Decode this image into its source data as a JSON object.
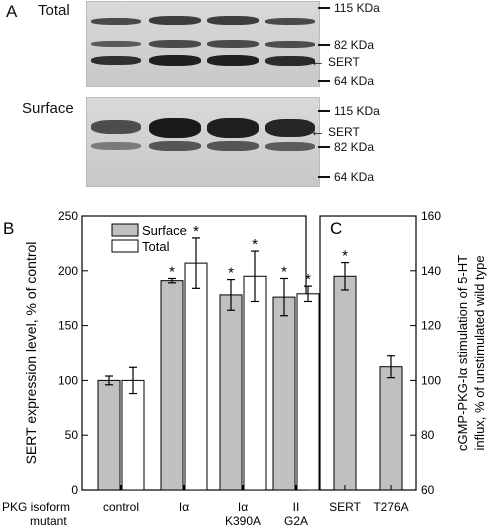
{
  "panels": {
    "a": "A",
    "b": "B",
    "c": "C"
  },
  "blots": {
    "total": {
      "title": "Total",
      "markers": [
        {
          "label": "115 KDa",
          "kind": "dash"
        },
        {
          "label": "82 KDa",
          "kind": "dash"
        },
        {
          "label": "SERT",
          "kind": "arrow"
        },
        {
          "label": "64 KDa",
          "kind": "dash"
        }
      ]
    },
    "surface": {
      "title": "Surface",
      "markers": [
        {
          "label": "115 KDa",
          "kind": "dash"
        },
        {
          "label": "SERT",
          "kind": "arrow"
        },
        {
          "label": "82 KDa",
          "kind": "dash"
        },
        {
          "label": "64 KDa",
          "kind": "dash"
        }
      ]
    }
  },
  "chart_data": [
    {
      "type": "bar",
      "panel": "B",
      "ylabel": "SERT expression level, % of control",
      "ylim": [
        0,
        250
      ],
      "yticks": [
        0,
        50,
        100,
        150,
        200,
        250
      ],
      "row_label_line1": "PKG isoform",
      "row_label_line2": "mutant",
      "categories": [
        {
          "line1": "control",
          "line2": ""
        },
        {
          "line1": "Iα",
          "line2": ""
        },
        {
          "line1": "Iα",
          "line2": "K390A"
        },
        {
          "line1": "II",
          "line2": "G2A"
        }
      ],
      "series": [
        {
          "name": "Surface",
          "color": "#c0c0c0",
          "values": [
            100,
            191,
            178,
            176
          ],
          "errors": [
            4,
            2,
            14,
            17
          ]
        },
        {
          "name": "Total",
          "color": "#ffffff",
          "values": [
            100,
            207,
            195,
            179
          ],
          "errors": [
            12,
            23,
            23,
            7
          ]
        }
      ],
      "significance_marks": [
        [
          false,
          true,
          true,
          true
        ],
        [
          false,
          true,
          true,
          true
        ]
      ],
      "significance_symbol": "*",
      "legend_position": "top-left"
    },
    {
      "type": "bar",
      "panel": "C",
      "ylabel_line1": "cGMP-PKG-Iα stimulation of 5-HT",
      "ylabel_line2": "influx, % of unstimulated wild type",
      "ylim": [
        60,
        160
      ],
      "yticks": [
        60,
        80,
        100,
        120,
        140,
        160
      ],
      "categories": [
        "SERT",
        "T276A"
      ],
      "values": [
        138,
        105
      ],
      "errors": [
        5,
        4
      ],
      "significance": [
        true,
        false
      ],
      "color": "#c0c0c0"
    }
  ]
}
